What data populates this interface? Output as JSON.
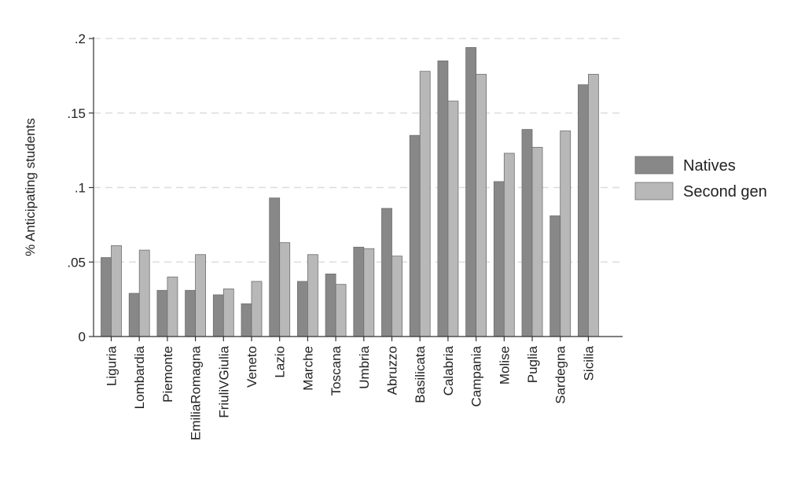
{
  "chart_data": {
    "type": "bar",
    "ylabel": "% Anticipating students",
    "xlabel": "",
    "ylim": [
      0,
      0.2
    ],
    "yticks": [
      {
        "value": 0,
        "label": "0"
      },
      {
        "value": 0.05,
        "label": ".05"
      },
      {
        "value": 0.1,
        "label": ".1"
      },
      {
        "value": 0.15,
        "label": ".15"
      },
      {
        "value": 0.2,
        "label": ".2"
      }
    ],
    "grid": true,
    "legend_position": "right",
    "categories": [
      "Liguria",
      "Lombardia",
      "Piemonte",
      "EmiliaRomagna",
      "FriuliVGiulia",
      "Veneto",
      "Lazio",
      "Marche",
      "Toscana",
      "Umbria",
      "Abruzzo",
      "Basilicata",
      "Calabria",
      "Campania",
      "Molise",
      "Puglia",
      "Sardegna",
      "Sicilia"
    ],
    "series": [
      {
        "name": "Natives",
        "color": "#888888",
        "values": [
          0.053,
          0.029,
          0.031,
          0.031,
          0.028,
          0.022,
          0.093,
          0.037,
          0.042,
          0.06,
          0.086,
          0.135,
          0.185,
          0.194,
          0.104,
          0.139,
          0.081,
          0.169
        ]
      },
      {
        "name": "Second gen",
        "color": "#b8b8b8",
        "values": [
          0.061,
          0.058,
          0.04,
          0.055,
          0.032,
          0.037,
          0.063,
          0.055,
          0.035,
          0.059,
          0.054,
          0.178,
          0.158,
          0.176,
          0.123,
          0.127,
          0.138,
          0.176
        ]
      }
    ]
  }
}
